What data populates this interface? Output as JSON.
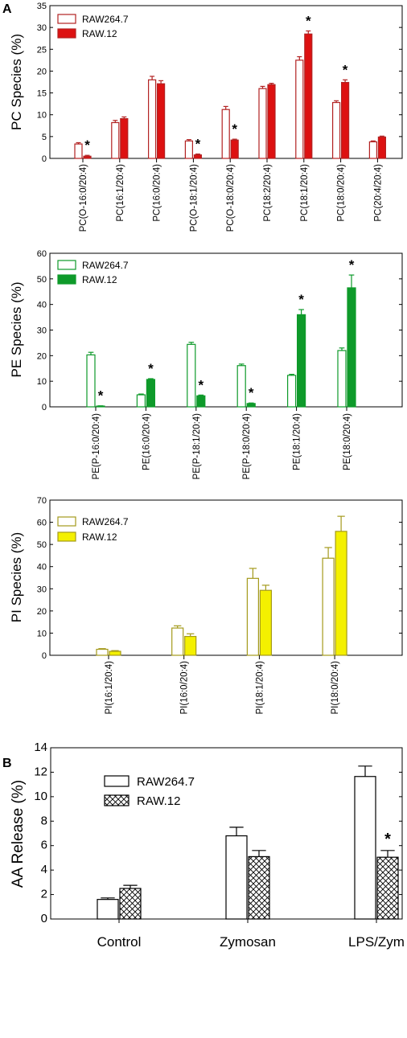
{
  "panel_labels": {
    "a": "A",
    "b": "B"
  },
  "colors": {
    "pc": "#dd1111",
    "pc_outline": "#b22222",
    "pe": "#0e9a2a",
    "pi": "#f4f000",
    "pi_outline": "#a49a1c",
    "axis": "#000000"
  },
  "chart_data": [
    {
      "type": "bar",
      "panel": "A",
      "ylabel": "PC Species (%)",
      "xlabel": "",
      "ylim": [
        0,
        35
      ],
      "yticks": [
        0,
        5,
        10,
        15,
        20,
        25,
        30,
        35
      ],
      "categories": [
        "PC(O-16:0/20:4)",
        "PC(16:1/20:4)",
        "PC(16:0/20:4)",
        "PC(O-18:1/20:4)",
        "PC(O-18:0/20:4)",
        "PC(18:2/20:4)",
        "PC(18:1/20:4)",
        "PC(18:0/20:4)",
        "PC(20:4/20:4)"
      ],
      "series": [
        {
          "name": "RAW264.7",
          "values": [
            3.3,
            8.2,
            18.0,
            4.0,
            11.2,
            16.0,
            22.5,
            12.8,
            3.8
          ],
          "errors": [
            0.3,
            0.5,
            0.8,
            0.3,
            0.7,
            0.5,
            0.8,
            0.4,
            0.2
          ],
          "style": "open"
        },
        {
          "name": "RAW.12",
          "values": [
            0.5,
            9.1,
            17.1,
            0.8,
            4.2,
            16.9,
            28.5,
            17.4,
            4.9
          ],
          "errors": [
            0.2,
            0.4,
            0.7,
            0.2,
            0.2,
            0.3,
            0.7,
            0.6,
            0.2
          ],
          "style": "filled"
        }
      ],
      "significant": [
        0,
        3,
        4,
        6,
        7
      ],
      "annotation": "*"
    },
    {
      "type": "bar",
      "panel": "A",
      "ylabel": "PE Species (%)",
      "xlabel": "",
      "ylim": [
        0,
        60
      ],
      "yticks": [
        0,
        10,
        20,
        30,
        40,
        50,
        60
      ],
      "categories": [
        "PE(P-16:0/20:4)",
        "PE(16:0/20:4)",
        "PE(P-18:1/20:4)",
        "PE(P-18:0/20:4)",
        "PE(18:1/20:4)",
        "PE(18:0/20:4)"
      ],
      "series": [
        {
          "name": "RAW264.7",
          "values": [
            20.3,
            4.7,
            24.4,
            16.1,
            12.3,
            22.0
          ],
          "errors": [
            1.0,
            0.3,
            0.8,
            0.6,
            0.4,
            1.0
          ],
          "style": "open"
        },
        {
          "name": "RAW.12",
          "values": [
            0.3,
            10.7,
            4.3,
            1.3,
            36.0,
            46.5
          ],
          "errors": [
            0.1,
            0.3,
            0.3,
            0.2,
            2.0,
            5.0
          ],
          "style": "filled"
        }
      ],
      "significant": [
        0,
        1,
        2,
        3,
        4,
        5
      ],
      "annotation": "*"
    },
    {
      "type": "bar",
      "panel": "A",
      "ylabel": "PI Species (%)",
      "xlabel": "",
      "ylim": [
        0,
        70
      ],
      "yticks": [
        0,
        10,
        20,
        30,
        40,
        50,
        60,
        70
      ],
      "categories": [
        "PI(16:1/20:4)",
        "PI(16:0/20:4)",
        "PI(18:1/20:4)",
        "PI(18:0/20:4)"
      ],
      "series": [
        {
          "name": "RAW264.7",
          "values": [
            2.7,
            12.3,
            34.7,
            43.8
          ],
          "errors": [
            0.3,
            1.0,
            4.5,
            4.8
          ],
          "style": "open"
        },
        {
          "name": "RAW.12",
          "values": [
            1.8,
            8.5,
            29.3,
            55.9
          ],
          "errors": [
            0.3,
            1.2,
            2.3,
            6.8
          ],
          "style": "filled"
        }
      ],
      "significant": [],
      "annotation": "*"
    },
    {
      "type": "bar",
      "panel": "B",
      "ylabel": "AA Release (%)",
      "xlabel": "",
      "ylim": [
        0,
        14
      ],
      "yticks": [
        0,
        2,
        4,
        6,
        8,
        10,
        12,
        14
      ],
      "categories": [
        "Control",
        "Zymosan",
        "LPS/Zym"
      ],
      "series": [
        {
          "name": "RAW264.7",
          "values": [
            1.6,
            6.8,
            11.65
          ],
          "errors": [
            0.12,
            0.7,
            0.85
          ],
          "style": "open"
        },
        {
          "name": "RAW.12",
          "values": [
            2.5,
            5.1,
            5.05
          ],
          "errors": [
            0.25,
            0.5,
            0.55
          ],
          "style": "hatched"
        }
      ],
      "significant": [
        2
      ],
      "annotation": "*"
    }
  ]
}
